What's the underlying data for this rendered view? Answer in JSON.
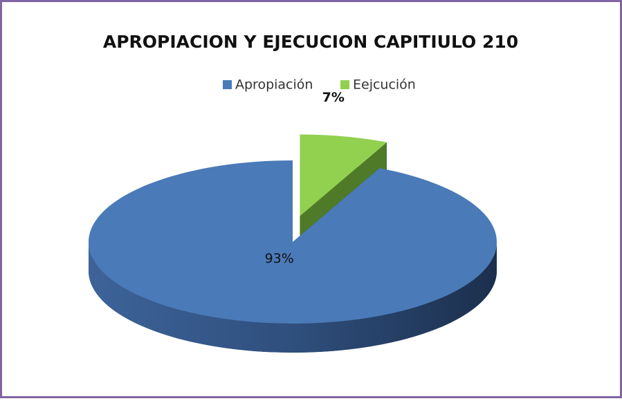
{
  "chart_data": {
    "type": "pie",
    "title": "APROPIACION Y EJECUCION CAPITIULO 210",
    "categories": [
      "Apropiación",
      "Eejcución"
    ],
    "values": [
      93,
      7
    ],
    "value_labels": [
      "93%",
      "7%"
    ],
    "colors": [
      "#4a7ab8",
      "#92d050"
    ],
    "legend": "top"
  }
}
